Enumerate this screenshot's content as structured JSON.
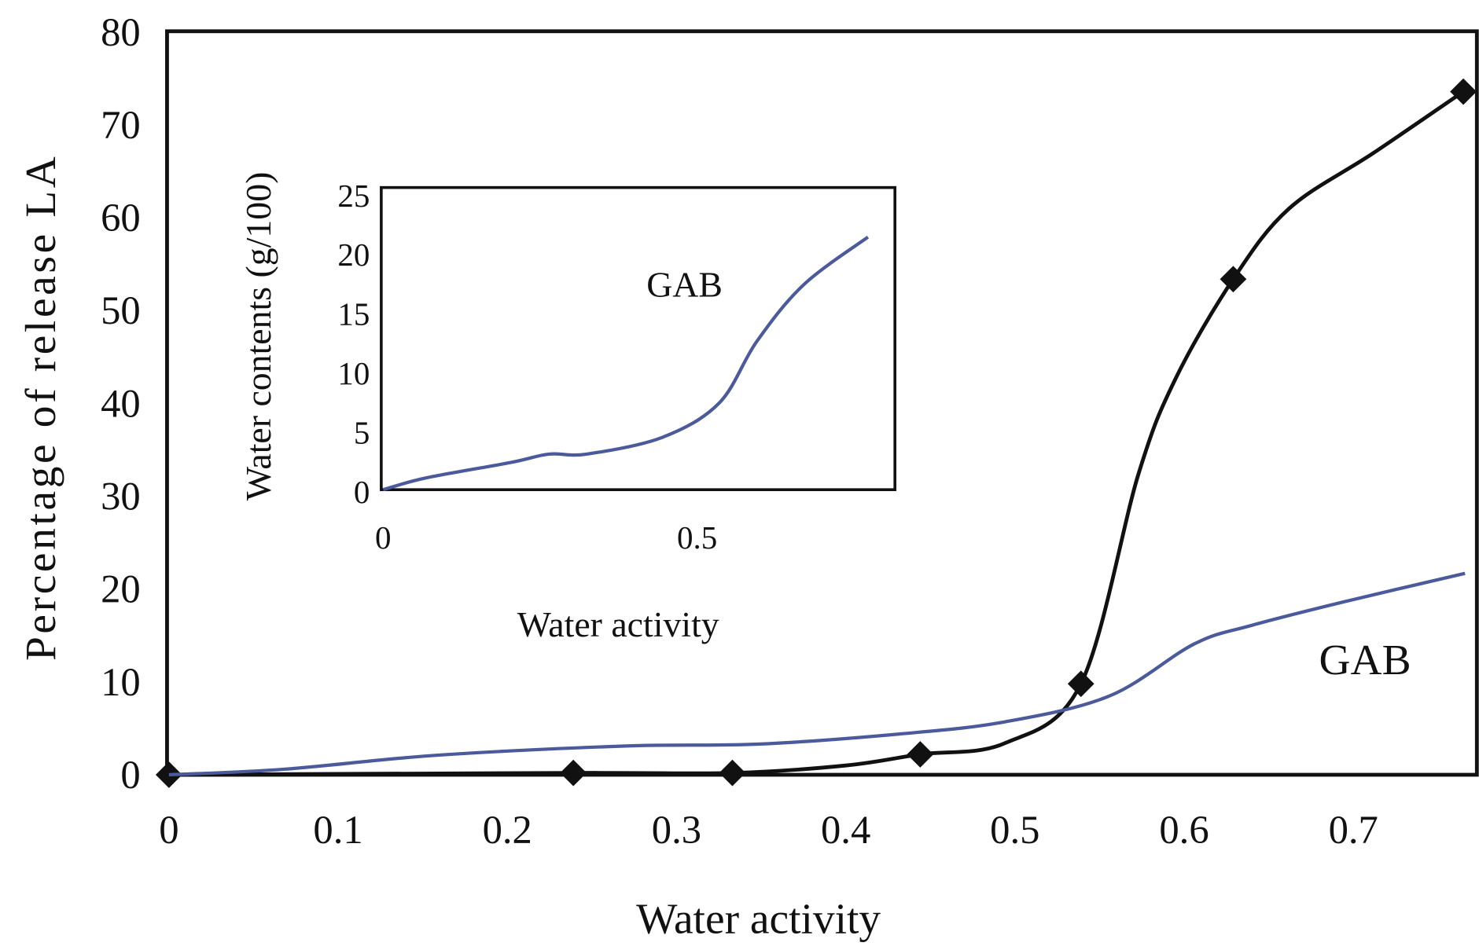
{
  "chart_data": [
    {
      "type": "line",
      "title": "",
      "xlabel": "Water activity",
      "ylabel": "Percentage of release LA",
      "xlim": [
        0,
        0.773
      ],
      "ylim": [
        0,
        80
      ],
      "xticks": [
        "0",
        "0.1",
        "0.2",
        "0.3",
        "0.4",
        "0.5",
        "0.6",
        "0.7"
      ],
      "yticks": [
        "0",
        "10",
        "20",
        "30",
        "40",
        "50",
        "60",
        "70",
        "80"
      ],
      "grid": false,
      "annotation": "GAB",
      "series": [
        {
          "name": "Release LA",
          "color": "#111111",
          "marker": "diamond",
          "points": [
            [
              0,
              0
            ],
            [
              0.239,
              0.2
            ],
            [
              0.333,
              0.2
            ],
            [
              0.444,
              2.2
            ],
            [
              0.539,
              9.8
            ],
            [
              0.629,
              53.4
            ],
            [
              0.765,
              73.6
            ]
          ],
          "curve": [
            [
              0,
              0
            ],
            [
              0.239,
              0.2
            ],
            [
              0.333,
              0.2
            ],
            [
              0.4,
              1.0
            ],
            [
              0.444,
              2.2
            ],
            [
              0.494,
              3.4
            ],
            [
              0.539,
              9.8
            ],
            [
              0.573,
              32.4
            ],
            [
              0.595,
              42.7
            ],
            [
              0.629,
              53.4
            ],
            [
              0.662,
              61
            ],
            [
              0.712,
              67
            ],
            [
              0.765,
              73.6
            ]
          ]
        },
        {
          "name": "GAB",
          "color": "#4a5a9a",
          "marker": "none",
          "curve": [
            [
              0,
              0
            ],
            [
              0.068,
              0.6
            ],
            [
              0.158,
              2.1
            ],
            [
              0.27,
              3.1
            ],
            [
              0.348,
              3.3
            ],
            [
              0.432,
              4.4
            ],
            [
              0.494,
              5.7
            ],
            [
              0.556,
              8.5
            ],
            [
              0.606,
              14.1
            ],
            [
              0.64,
              16.1
            ],
            [
              0.696,
              18.7
            ],
            [
              0.766,
              21.7
            ]
          ]
        }
      ]
    },
    {
      "type": "line",
      "title": "",
      "xlabel": "Water activity",
      "ylabel": "Water contents (g/100)",
      "xlim": [
        0,
        0.815
      ],
      "ylim": [
        0,
        25
      ],
      "xticks": [
        "0",
        "0.5"
      ],
      "yticks": [
        "0",
        "5",
        "10",
        "15",
        "20",
        "25"
      ],
      "annotation": "GAB",
      "series": [
        {
          "name": "GAB",
          "color": "#4a5a9a",
          "curve": [
            [
              0,
              0
            ],
            [
              0.069,
              1
            ],
            [
              0.204,
              2.3
            ],
            [
              0.264,
              3
            ],
            [
              0.324,
              3
            ],
            [
              0.444,
              4.4
            ],
            [
              0.535,
              7.3
            ],
            [
              0.595,
              12.5
            ],
            [
              0.67,
              17.3
            ],
            [
              0.772,
              21.3
            ]
          ]
        }
      ]
    }
  ]
}
